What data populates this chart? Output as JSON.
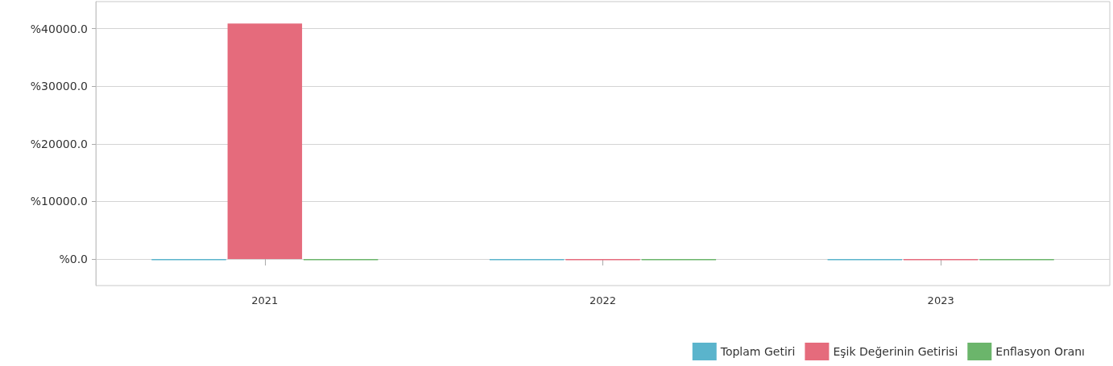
{
  "chart_data": {
    "type": "bar",
    "categories": [
      "2021",
      "2022",
      "2023"
    ],
    "series": [
      {
        "name": "Toplam Getiri",
        "color": "#5ab4cc",
        "values": [
          -200,
          -200,
          -200
        ]
      },
      {
        "name": "Eşik Değerinin Getirisi",
        "color": "#e56b7c",
        "values": [
          40900,
          -200,
          -200
        ]
      },
      {
        "name": "Enflasyon Oranı",
        "color": "#6bb56b",
        "values": [
          -200,
          -200,
          -200
        ]
      }
    ],
    "ylim": [
      -4600,
      44700
    ],
    "yticks": [
      {
        "value": 0,
        "label": "%0.0"
      },
      {
        "value": 10000,
        "label": "%10000.0"
      },
      {
        "value": 20000,
        "label": "%20000.0"
      },
      {
        "value": 30000,
        "label": "%30000.0"
      },
      {
        "value": 40000,
        "label": "%40000.0"
      }
    ],
    "grid": "y",
    "legend": "bottom right"
  }
}
